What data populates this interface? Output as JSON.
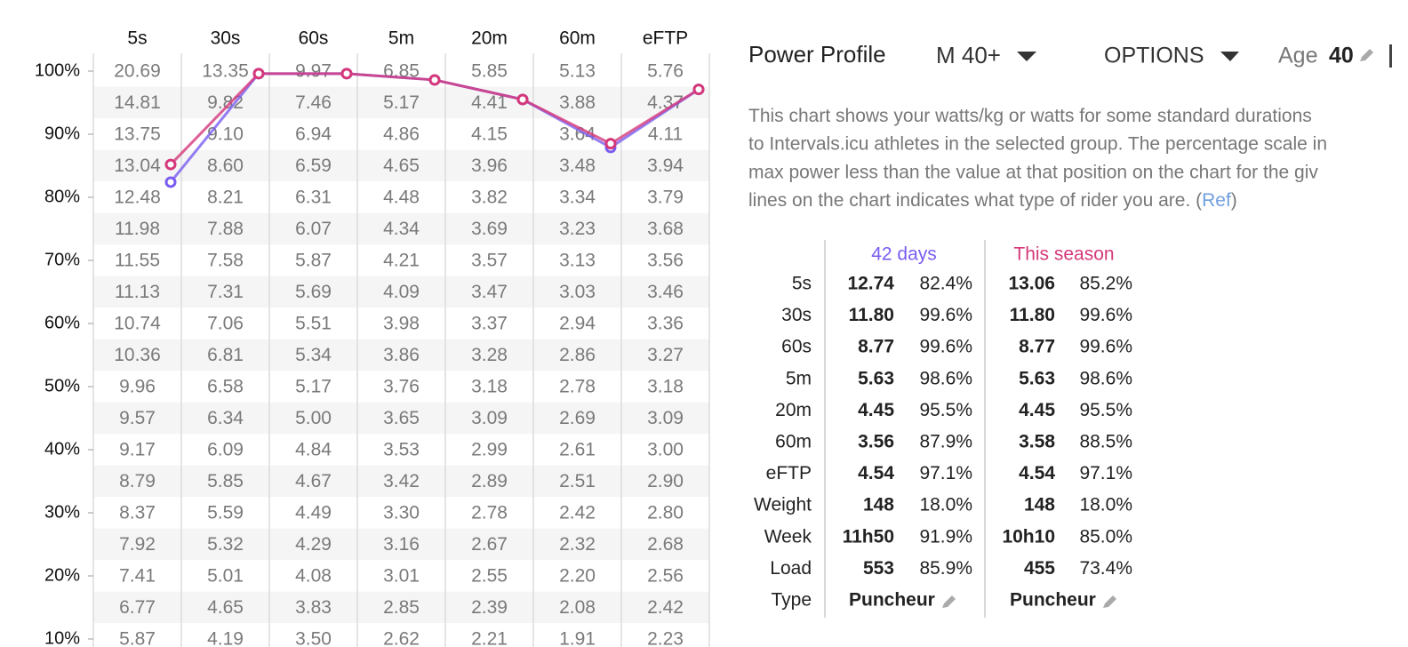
{
  "chart": {
    "type": "line",
    "columns": [
      "5s",
      "30s",
      "60s",
      "5m",
      "20m",
      "60m",
      "eFTP"
    ],
    "rows": [
      [
        "20.69",
        "13.35",
        "9.97",
        "6.85",
        "5.85",
        "5.13",
        "5.76"
      ],
      [
        "14.81",
        "9.82",
        "7.46",
        "5.17",
        "4.41",
        "3.88",
        "4.37"
      ],
      [
        "13.75",
        "9.10",
        "6.94",
        "4.86",
        "4.15",
        "3.64",
        "4.11"
      ],
      [
        "13.04",
        "8.60",
        "6.59",
        "4.65",
        "3.96",
        "3.48",
        "3.94"
      ],
      [
        "12.48",
        "8.21",
        "6.31",
        "4.48",
        "3.82",
        "3.34",
        "3.79"
      ],
      [
        "11.98",
        "7.88",
        "6.07",
        "4.34",
        "3.69",
        "3.23",
        "3.68"
      ],
      [
        "11.55",
        "7.58",
        "5.87",
        "4.21",
        "3.57",
        "3.13",
        "3.56"
      ],
      [
        "11.13",
        "7.31",
        "5.69",
        "4.09",
        "3.47",
        "3.03",
        "3.46"
      ],
      [
        "10.74",
        "7.06",
        "5.51",
        "3.98",
        "3.37",
        "2.94",
        "3.36"
      ],
      [
        "10.36",
        "6.81",
        "5.34",
        "3.86",
        "3.28",
        "2.86",
        "3.27"
      ],
      [
        "9.96",
        "6.58",
        "5.17",
        "3.76",
        "3.18",
        "2.78",
        "3.18"
      ],
      [
        "9.57",
        "6.34",
        "5.00",
        "3.65",
        "3.09",
        "2.69",
        "3.09"
      ],
      [
        "9.17",
        "6.09",
        "4.84",
        "3.53",
        "2.99",
        "2.61",
        "3.00"
      ],
      [
        "8.79",
        "5.85",
        "4.67",
        "3.42",
        "2.89",
        "2.51",
        "2.90"
      ],
      [
        "8.37",
        "5.59",
        "4.49",
        "3.30",
        "2.78",
        "2.42",
        "2.80"
      ],
      [
        "7.92",
        "5.32",
        "4.29",
        "3.16",
        "2.67",
        "2.32",
        "2.68"
      ],
      [
        "7.41",
        "5.01",
        "4.08",
        "3.01",
        "2.55",
        "2.20",
        "2.56"
      ],
      [
        "6.77",
        "4.65",
        "3.83",
        "2.85",
        "2.39",
        "2.08",
        "2.42"
      ],
      [
        "5.87",
        "4.19",
        "3.50",
        "2.62",
        "2.21",
        "1.91",
        "2.23"
      ]
    ],
    "ylim": [
      10,
      100
    ],
    "yticks": [
      {
        "value": 100,
        "label": "100%"
      },
      {
        "value": 90,
        "label": "90%"
      },
      {
        "value": 80,
        "label": "80%"
      },
      {
        "value": 70,
        "label": "70%"
      },
      {
        "value": 60,
        "label": "60%"
      },
      {
        "value": 50,
        "label": "50%"
      },
      {
        "value": 40,
        "label": "40%"
      },
      {
        "value": 30,
        "label": "30%"
      },
      {
        "value": 20,
        "label": "20%"
      },
      {
        "value": 10,
        "label": "10%"
      }
    ],
    "series": [
      {
        "name": "42 days",
        "color": "#7a5cf0",
        "values": [
          82.4,
          99.6,
          99.6,
          98.6,
          95.5,
          87.9,
          97.1
        ],
        "value_labels": [
          "82.4%",
          "99.6%",
          "99.6%",
          "98.6%",
          "95.5%",
          "87.9%",
          "97.1%"
        ]
      },
      {
        "name": "This season",
        "color": "#d4387a",
        "values": [
          85.2,
          99.6,
          99.6,
          98.6,
          95.5,
          88.5,
          97.1
        ],
        "value_labels": [
          "85.2%",
          "99.6%",
          "99.6%",
          "98.6%",
          "95.5%",
          "88.5%",
          "97.1%"
        ]
      }
    ]
  },
  "header": {
    "title": "Power Profile",
    "group": "M 40+",
    "options": "OPTIONS",
    "age_label": "Age",
    "age": "40"
  },
  "description": {
    "lines": [
      "This chart shows your watts/kg or watts for some standard durations",
      "to Intervals.icu athletes in the selected group. The percentage scale in",
      "max power less than the value at that position on the chart for the giv",
      "lines on the chart indicates what type of rider you are. ("
    ],
    "link": "Ref",
    "tail": ")"
  },
  "stats": {
    "extra_labels": [
      "Weight",
      "Week",
      "Load",
      "Type"
    ],
    "sets": [
      {
        "values": [
          "12.74",
          "11.80",
          "8.77",
          "5.63",
          "4.45",
          "3.56",
          "4.54",
          "148",
          "11h50",
          "553",
          "Puncheur"
        ],
        "extra_pct": [
          "18.0%",
          "91.9%",
          "85.9%"
        ]
      },
      {
        "values": [
          "13.06",
          "11.80",
          "8.77",
          "5.63",
          "4.45",
          "3.58",
          "4.54",
          "148",
          "10h10",
          "455",
          "Puncheur"
        ],
        "extra_pct": [
          "18.0%",
          "85.0%",
          "73.4%"
        ]
      }
    ]
  }
}
